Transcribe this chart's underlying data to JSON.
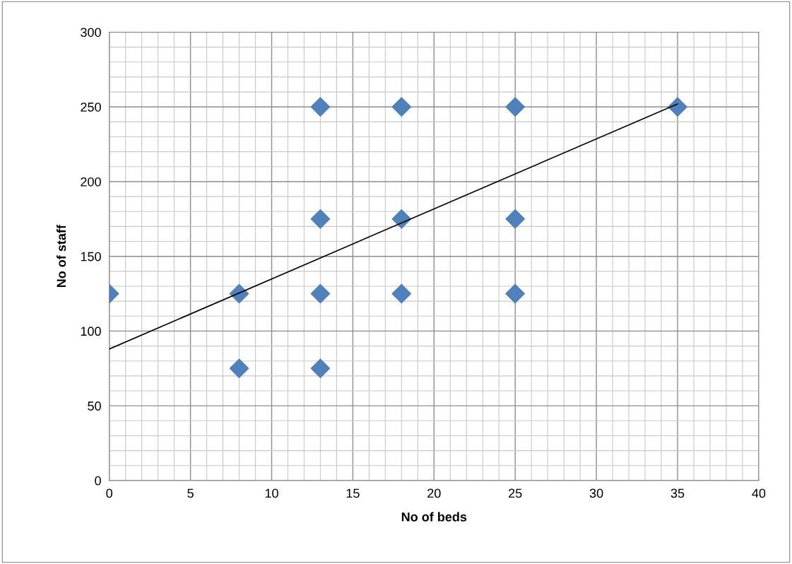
{
  "chart_data": {
    "type": "scatter",
    "xlabel": "No of beds",
    "ylabel": "No of staff",
    "xlim": [
      0,
      40
    ],
    "xticks": [
      0,
      5,
      10,
      15,
      20,
      25,
      30,
      35,
      40
    ],
    "ylim": [
      0,
      300
    ],
    "yticks": [
      0,
      50,
      100,
      150,
      200,
      250,
      300
    ],
    "grid": true,
    "series": [
      {
        "marker": "diamond",
        "color": "#4f81bd",
        "x": [
          0,
          8,
          8,
          13,
          13,
          13,
          13,
          18,
          18,
          18,
          25,
          25,
          25,
          35
        ],
        "values": [
          125,
          125,
          75,
          250,
          175,
          125,
          75,
          250,
          175,
          125,
          250,
          175,
          125,
          250
        ]
      },
      {
        "type": "line",
        "color": "#000000",
        "line_style": "solid",
        "marker": "none",
        "x": [
          0,
          35
        ],
        "values": [
          88,
          252
        ]
      }
    ]
  }
}
